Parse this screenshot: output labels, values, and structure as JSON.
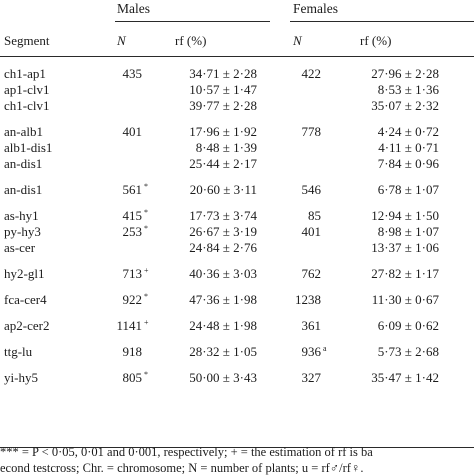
{
  "table": {
    "group_headers": {
      "males": "Males",
      "females": "Females"
    },
    "columns": {
      "segment": "Segment",
      "n": "N",
      "rf": "rf (%)"
    },
    "rows": [
      {
        "segment": "ch1-ap1",
        "male_n": "435",
        "male_mark": "",
        "male_rf": "34·71 ± 2·28",
        "female_n": "422",
        "female_mark": "",
        "female_rf": "27·96 ± 2·28"
      },
      {
        "segment": "ap1-clv1",
        "male_n": "",
        "male_mark": "",
        "male_rf": "10·57 ± 1·47",
        "female_n": "",
        "female_mark": "",
        "female_rf": "8·53 ± 1·36"
      },
      {
        "segment": "ch1-clv1",
        "male_n": "",
        "male_mark": "",
        "male_rf": "39·77 ± 2·28",
        "female_n": "",
        "female_mark": "",
        "female_rf": "35·07 ± 2·32"
      },
      {
        "segment": "an-alb1",
        "male_n": "401",
        "male_mark": "",
        "male_rf": "17·96 ± 1·92",
        "female_n": "778",
        "female_mark": "",
        "female_rf": "4·24 ± 0·72"
      },
      {
        "segment": "alb1-dis1",
        "male_n": "",
        "male_mark": "",
        "male_rf": "8·48 ± 1·39",
        "female_n": "",
        "female_mark": "",
        "female_rf": "4·11 ± 0·71"
      },
      {
        "segment": "an-dis1",
        "male_n": "",
        "male_mark": "",
        "male_rf": "25·44 ± 2·17",
        "female_n": "",
        "female_mark": "",
        "female_rf": "7·84 ± 0·96"
      },
      {
        "segment": "an-dis1",
        "male_n": "561",
        "male_mark": "*",
        "male_rf": "20·60 ± 3·11",
        "female_n": "546",
        "female_mark": "",
        "female_rf": "6·78 ± 1·07"
      },
      {
        "segment": "as-hy1",
        "male_n": "415",
        "male_mark": "*",
        "male_rf": "17·73 ± 3·74",
        "female_n": "85",
        "female_mark": "",
        "female_rf": "12·94 ± 1·50"
      },
      {
        "segment": "py-hy3",
        "male_n": "253",
        "male_mark": "*",
        "male_rf": "26·67 ± 3·19",
        "female_n": "401",
        "female_mark": "",
        "female_rf": "8·98 ± 1·07"
      },
      {
        "segment": "as-cer",
        "male_n": "",
        "male_mark": "",
        "male_rf": "24·84 ± 2·76",
        "female_n": "",
        "female_mark": "",
        "female_rf": "13·37 ± 1·06"
      },
      {
        "segment": "hy2-gl1",
        "male_n": "713",
        "male_mark": "+",
        "male_rf": "40·36 ± 3·03",
        "female_n": "762",
        "female_mark": "",
        "female_rf": "27·82 ± 1·17"
      },
      {
        "segment": "fca-cer4",
        "male_n": "922",
        "male_mark": "*",
        "male_rf": "47·36 ± 1·98",
        "female_n": "1238",
        "female_mark": "",
        "female_rf": "11·30 ± 0·67"
      },
      {
        "segment": "ap2-cer2",
        "male_n": "1141",
        "male_mark": "+",
        "male_rf": "24·48 ± 1·98",
        "female_n": "361",
        "female_mark": "",
        "female_rf": "6·09 ± 0·62"
      },
      {
        "segment": "ttg-lu",
        "male_n": "918",
        "male_mark": "",
        "male_rf": "28·32 ± 1·05",
        "female_n": "936",
        "female_mark": "a",
        "female_rf": "5·73 ± 2·68"
      },
      {
        "segment": "yi-hy5",
        "male_n": "805",
        "male_mark": "*",
        "male_rf": "50·00 ± 3·43",
        "female_n": "327",
        "female_mark": "",
        "female_rf": "35·47 ± 1·42"
      }
    ]
  },
  "footnotes": {
    "line1": "*** = P < 0·05, 0·01 and 0·001, respectively; + = the estimation of rf is ba",
    "line2": "econd testcross; Chr. = chromosome; N = number of plants; u = rf♂/rf♀."
  }
}
